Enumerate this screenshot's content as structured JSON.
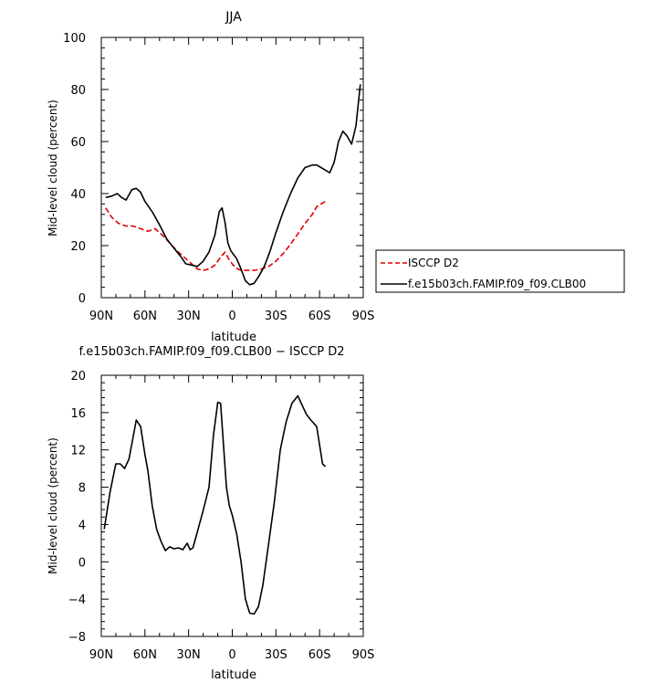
{
  "chart_data": [
    {
      "type": "line",
      "title": "JJA",
      "xlabel": "latitude",
      "ylabel": "Mid-level cloud (percent)",
      "xlim": [
        -90,
        90
      ],
      "ylim": [
        0,
        100
      ],
      "x_ticks": [
        -90,
        -60,
        -30,
        0,
        30,
        60,
        90
      ],
      "x_tick_labels": [
        "90N",
        "60N",
        "30N",
        "0",
        "30S",
        "60S",
        "90S"
      ],
      "y_ticks": [
        0,
        20,
        40,
        60,
        80,
        100
      ],
      "y_tick_labels": [
        "0",
        "20",
        "40",
        "60",
        "80",
        "100"
      ],
      "legend_position": "right",
      "series": [
        {
          "name": "ISCCP D2",
          "color": "#e00000",
          "dash": "dashed",
          "x": [
            -87,
            -83,
            -78,
            -73,
            -68,
            -63,
            -58,
            -53,
            -48,
            -43,
            -38,
            -33,
            -28,
            -24,
            -20,
            -16,
            -12,
            -8,
            -5,
            -2,
            2,
            6,
            10,
            15,
            20,
            25,
            30,
            35,
            40,
            45,
            50,
            55,
            58,
            61,
            64
          ],
          "y": [
            34.5,
            31,
            28.5,
            27.5,
            27.5,
            26.5,
            25.5,
            26.5,
            24,
            21,
            18,
            15.5,
            13,
            11,
            10.5,
            11,
            12.5,
            15.5,
            17.5,
            14.5,
            11.5,
            10.5,
            10.5,
            10.5,
            11,
            12,
            14,
            17,
            20.5,
            24.5,
            28.5,
            32,
            35,
            36,
            37
          ]
        },
        {
          "name": "f.e15b03ch.FAMIP.f09_f09.CLB00",
          "color": "#000000",
          "dash": "solid",
          "x": [
            -87,
            -83,
            -79,
            -76,
            -73,
            -69,
            -66,
            -63,
            -60,
            -55,
            -50,
            -45,
            -40,
            -35,
            -32,
            -28,
            -24,
            -20,
            -16,
            -12,
            -9,
            -7,
            -5,
            -3,
            -1,
            3,
            6,
            9,
            12,
            15,
            18,
            22,
            26,
            30,
            35,
            40,
            45,
            50,
            55,
            58,
            61,
            64,
            67,
            70,
            73,
            76,
            79,
            82,
            85,
            88
          ],
          "y": [
            38.5,
            39,
            40,
            38.5,
            37.5,
            41.5,
            42,
            40.5,
            37,
            33,
            28,
            22.5,
            19,
            15.5,
            13,
            12.5,
            12,
            14,
            17.5,
            24,
            33,
            34.5,
            29,
            21,
            18,
            15,
            11,
            6.5,
            5,
            5.5,
            8,
            12,
            18,
            25,
            33,
            40,
            46,
            50,
            51,
            51,
            50,
            49,
            48,
            52,
            60,
            64,
            62,
            59,
            66,
            82
          ]
        }
      ]
    },
    {
      "type": "line",
      "title": "f.e15b03ch.FAMIP.f09_f09.CLB00 − ISCCP D2",
      "xlabel": "latitude",
      "ylabel": "Mid-level cloud (percent)",
      "xlim": [
        -90,
        90
      ],
      "ylim": [
        -8,
        20
      ],
      "x_ticks": [
        -90,
        -60,
        -30,
        0,
        30,
        60,
        90
      ],
      "x_tick_labels": [
        "90N",
        "60N",
        "30N",
        "0",
        "30S",
        "60S",
        "90S"
      ],
      "y_ticks": [
        -8,
        -4,
        0,
        4,
        8,
        12,
        16,
        20
      ],
      "y_tick_labels": [
        "−8",
        "−4",
        "0",
        "4",
        "8",
        "12",
        "16",
        "20"
      ],
      "series": [
        {
          "name": "",
          "color": "#000000",
          "dash": "solid",
          "x": [
            -88,
            -84,
            -80,
            -77,
            -74,
            -71,
            -68,
            -66,
            -63,
            -60,
            -58,
            -55,
            -52,
            -49,
            -46,
            -43,
            -40,
            -37,
            -34,
            -31,
            -29,
            -27,
            -24,
            -20,
            -16,
            -13,
            -10,
            -8,
            -6,
            -4,
            -2,
            0,
            3,
            6,
            9,
            12,
            15,
            18,
            21,
            25,
            29,
            33,
            37,
            41,
            45,
            48,
            51,
            54,
            58,
            62,
            64
          ],
          "y": [
            3.5,
            7.5,
            10.5,
            10.5,
            10,
            11,
            13.5,
            15.2,
            14.5,
            11.5,
            9.8,
            6,
            3.5,
            2.2,
            1.2,
            1.6,
            1.4,
            1.5,
            1.3,
            2.0,
            1.3,
            1.5,
            3.2,
            5.5,
            8,
            13.5,
            17.1,
            17.0,
            12.5,
            8,
            6,
            5,
            3,
            0,
            -4,
            -5.5,
            -5.6,
            -4.8,
            -2.5,
            2,
            6.5,
            12,
            15,
            17,
            17.8,
            16.8,
            15.8,
            15.2,
            14.5,
            10.5,
            10.2
          ]
        }
      ]
    }
  ]
}
